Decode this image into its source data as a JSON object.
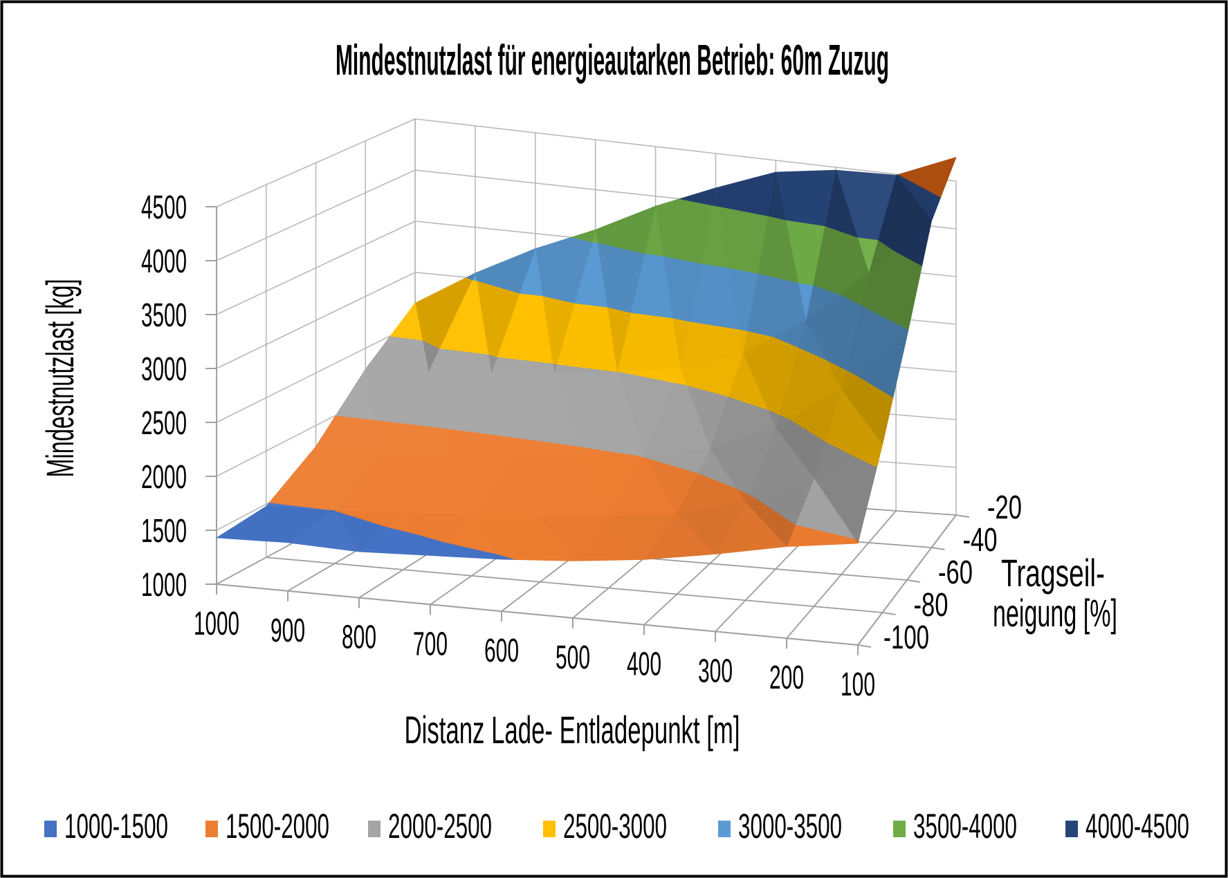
{
  "title": "Mindestnutzlast für energieautarken Betrieb: 60m Zuzug",
  "axes": {
    "x": {
      "title": "Distanz Lade- Entladepunkt [m]",
      "tick_labels": [
        "1000",
        "900",
        "800",
        "700",
        "600",
        "500",
        "400",
        "300",
        "200",
        "100"
      ]
    },
    "y": {
      "title": "Mindestnutzlast [kg]",
      "tick_labels": [
        "1000",
        "1500",
        "2000",
        "2500",
        "3000",
        "3500",
        "4000",
        "4500"
      ],
      "min": 1000,
      "max": 4500,
      "step": 500
    },
    "z": {
      "title_line1": "Tragseil-",
      "title_line2": "neigung [%]",
      "tick_labels": [
        "-100",
        "-80",
        "-60",
        "-40",
        "-20"
      ]
    }
  },
  "legend": [
    {
      "label": "1000-1500",
      "color": "#4472C4"
    },
    {
      "label": "1500-2000",
      "color": "#ED7D31"
    },
    {
      "label": "2000-2500",
      "color": "#A5A5A5"
    },
    {
      "label": "2500-3000",
      "color": "#FFC000"
    },
    {
      "label": "3000-3500",
      "color": "#5B9BD5"
    },
    {
      "label": "3500-4000",
      "color": "#70AD47"
    },
    {
      "label": "4000-4500",
      "color": "#264478"
    }
  ],
  "chart_data": {
    "type": "surface",
    "title": "Mindestnutzlast für energieautarken Betrieb: 60m Zuzug",
    "xlabel": "Distanz Lade- Entladepunkt [m]",
    "ylabel": "Mindestnutzlast (kg)",
    "zlabel": "Tragseilneigung [%]",
    "x_categories": [
      1000,
      900,
      800,
      700,
      600,
      500,
      400,
      300,
      200,
      100
    ],
    "z_series_labels": [
      -100,
      -80,
      -60,
      -40,
      -20
    ],
    "series": [
      {
        "name": "-100",
        "values": [
          1430,
          1450,
          1430,
          1460,
          1490,
          1540,
          1620,
          1740,
          1880,
          1980
        ]
      },
      {
        "name": "-80",
        "values": [
          1480,
          1500,
          1540,
          1580,
          1630,
          1690,
          1780,
          1950,
          2250,
          2650
        ]
      },
      {
        "name": "-60",
        "values": [
          1800,
          1820,
          1850,
          1890,
          1940,
          2010,
          2130,
          2400,
          2850,
          3450
        ]
      },
      {
        "name": "-40",
        "values": [
          2300,
          2330,
          2370,
          2420,
          2490,
          2600,
          2800,
          3200,
          3750,
          4350
        ]
      },
      {
        "name": "-20",
        "values": [
          2700,
          3050,
          3350,
          3600,
          3900,
          4150,
          4380,
          4470,
          4490,
          4750
        ]
      }
    ],
    "value_bands": [
      {
        "min": 1000,
        "max": 1500,
        "color": "#4472C4"
      },
      {
        "min": 1500,
        "max": 2000,
        "color": "#ED7D31"
      },
      {
        "min": 2000,
        "max": 2500,
        "color": "#A5A5A5"
      },
      {
        "min": 2500,
        "max": 3000,
        "color": "#FFC000"
      },
      {
        "min": 3000,
        "max": 3500,
        "color": "#5B9BD5"
      },
      {
        "min": 3500,
        "max": 4000,
        "color": "#70AD47"
      },
      {
        "min": 4000,
        "max": 4500,
        "color": "#264478"
      },
      {
        "min": 4500,
        "max": 5000,
        "color": "#C55A11"
      }
    ],
    "ylim": [
      1000,
      4500
    ],
    "legend_position": "bottom",
    "grid": true
  }
}
